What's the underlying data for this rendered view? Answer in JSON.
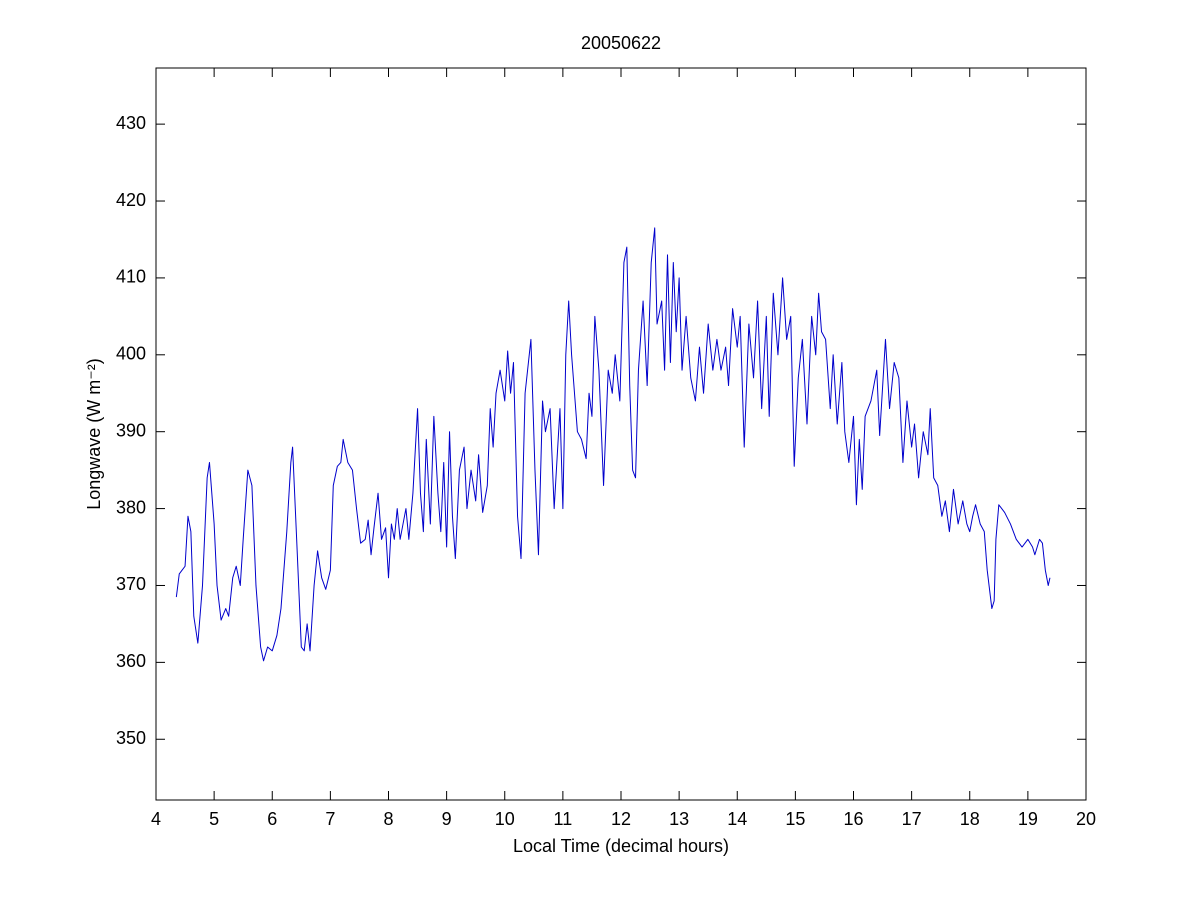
{
  "chart_data": {
    "type": "line",
    "title": "20050622",
    "xlabel": "Local Time (decimal hours)",
    "ylabel": "Longwave (W m⁻²)",
    "xlim": [
      4,
      20
    ],
    "ylim": [
      342.1,
      437.3
    ],
    "xticks": [
      4,
      5,
      6,
      7,
      8,
      9,
      10,
      11,
      12,
      13,
      14,
      15,
      16,
      17,
      18,
      19,
      20
    ],
    "yticks": [
      350,
      360,
      370,
      380,
      390,
      400,
      410,
      420,
      430
    ],
    "grid": false,
    "series": [
      {
        "color": "#0000cc",
        "x": [
          4.35,
          4.4,
          4.45,
          4.5,
          4.55,
          4.6,
          4.65,
          4.72,
          4.8,
          4.88,
          4.92,
          5.0,
          5.05,
          5.12,
          5.2,
          5.25,
          5.32,
          5.38,
          5.45,
          5.5,
          5.58,
          5.65,
          5.72,
          5.8,
          5.85,
          5.92,
          6.0,
          6.08,
          6.15,
          6.25,
          6.32,
          6.35,
          6.42,
          6.5,
          6.55,
          6.6,
          6.65,
          6.72,
          6.78,
          6.85,
          6.92,
          7.0,
          7.05,
          7.12,
          7.18,
          7.22,
          7.3,
          7.38,
          7.45,
          7.52,
          7.6,
          7.65,
          7.7,
          7.75,
          7.82,
          7.88,
          7.95,
          8.0,
          8.05,
          8.1,
          8.15,
          8.2,
          8.25,
          8.3,
          8.35,
          8.42,
          8.5,
          8.55,
          8.6,
          8.65,
          8.72,
          8.78,
          8.85,
          8.9,
          8.95,
          9.0,
          9.05,
          9.1,
          9.15,
          9.22,
          9.3,
          9.35,
          9.42,
          9.5,
          9.55,
          9.62,
          9.7,
          9.75,
          9.8,
          9.85,
          9.92,
          10.0,
          10.05,
          10.1,
          10.15,
          10.22,
          10.28,
          10.35,
          10.45,
          10.52,
          10.58,
          10.65,
          10.7,
          10.78,
          10.85,
          10.95,
          11.0,
          11.05,
          11.1,
          11.15,
          11.2,
          11.25,
          11.32,
          11.4,
          11.45,
          11.5,
          11.55,
          11.62,
          11.7,
          11.78,
          11.85,
          11.9,
          11.98,
          12.05,
          12.1,
          12.15,
          12.2,
          12.25,
          12.3,
          12.38,
          12.45,
          12.52,
          12.58,
          12.62,
          12.7,
          12.75,
          12.8,
          12.85,
          12.9,
          12.95,
          13.0,
          13.05,
          13.12,
          13.2,
          13.28,
          13.35,
          13.42,
          13.5,
          13.58,
          13.65,
          13.72,
          13.8,
          13.85,
          13.92,
          14.0,
          14.05,
          14.12,
          14.2,
          14.28,
          14.35,
          14.42,
          14.5,
          14.55,
          14.62,
          14.7,
          14.78,
          14.85,
          14.92,
          14.98,
          15.05,
          15.12,
          15.2,
          15.28,
          15.35,
          15.4,
          15.45,
          15.52,
          15.6,
          15.65,
          15.72,
          15.8,
          15.85,
          15.92,
          16.0,
          16.05,
          16.1,
          16.15,
          16.2,
          16.3,
          16.4,
          16.45,
          16.55,
          16.62,
          16.7,
          16.78,
          16.85,
          16.92,
          17.0,
          17.05,
          17.12,
          17.2,
          17.28,
          17.32,
          17.38,
          17.45,
          17.52,
          17.58,
          17.65,
          17.72,
          17.8,
          17.88,
          17.95,
          18.0,
          18.05,
          18.1,
          18.18,
          18.25,
          18.3,
          18.38,
          18.42,
          18.45,
          18.5,
          18.6,
          18.7,
          18.8,
          18.9,
          19.0,
          19.08,
          19.12,
          19.2,
          19.25,
          19.3,
          19.35,
          19.38
        ],
        "values": [
          368.5,
          371.5,
          372,
          372.5,
          379,
          377,
          366,
          362.5,
          370,
          384,
          386,
          378,
          370,
          365.5,
          367,
          366,
          371,
          372.5,
          370,
          376,
          385,
          383,
          370,
          362,
          360.2,
          362,
          361.5,
          363.5,
          367,
          377,
          386,
          388,
          376,
          362,
          361.5,
          365,
          361.5,
          370,
          374.5,
          371,
          369.5,
          372,
          383,
          385.5,
          386,
          389,
          386,
          385,
          380,
          375.5,
          376,
          378.5,
          374,
          377.5,
          382,
          376,
          377.5,
          371,
          378,
          376,
          380,
          376,
          378,
          380,
          376,
          382,
          393,
          382,
          377,
          389,
          378,
          392,
          382,
          377,
          386,
          375,
          390,
          379,
          373.5,
          385,
          388,
          380,
          385,
          381,
          387,
          379.5,
          383,
          393,
          388,
          395,
          398,
          394,
          400.5,
          395,
          399,
          379,
          373.5,
          395,
          402,
          385,
          374,
          394,
          390,
          393,
          380,
          393,
          380,
          400,
          407,
          400,
          395,
          390,
          389,
          386.5,
          395,
          392,
          405,
          398,
          383,
          398,
          395,
          400,
          394,
          412,
          414,
          396,
          385,
          384,
          398,
          407,
          396,
          412,
          416.5,
          404,
          407,
          398,
          413,
          399,
          412,
          403,
          410,
          398,
          405,
          397,
          394,
          401,
          395,
          404,
          398,
          402,
          398,
          401,
          396,
          406,
          401,
          405,
          388,
          404,
          397,
          407,
          393,
          405,
          392,
          408,
          400,
          410,
          402,
          405,
          385.5,
          397,
          402,
          391,
          405,
          400,
          408,
          403,
          402,
          393,
          400,
          391,
          399,
          390,
          386,
          392,
          380.5,
          389,
          382.5,
          392,
          394,
          398,
          389.5,
          402,
          393,
          399,
          397,
          386,
          394,
          388,
          391,
          384,
          390,
          387,
          393,
          384,
          383,
          379,
          381,
          377,
          382.5,
          378,
          381,
          378,
          377,
          379,
          380.5,
          378,
          377,
          372,
          367,
          368,
          376,
          380.5,
          379.5,
          378,
          376,
          375,
          376,
          375,
          374,
          376,
          375.5,
          372,
          370,
          371
        ]
      }
    ]
  }
}
